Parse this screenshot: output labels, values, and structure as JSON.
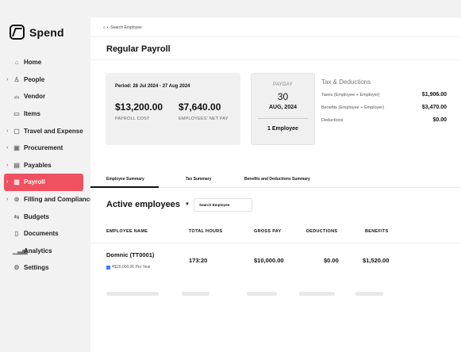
{
  "app": {
    "name": "Spend"
  },
  "sidebar": {
    "items": [
      {
        "label": "Home",
        "icon": "home-icon",
        "glyph": "⌂",
        "chevron": false,
        "active": false
      },
      {
        "label": "People",
        "icon": "people-icon",
        "glyph": "♙",
        "chevron": true,
        "active": false
      },
      {
        "label": "Vendor",
        "icon": "vendor-icon",
        "glyph": "⌓",
        "chevron": false,
        "active": false
      },
      {
        "label": "Items",
        "icon": "items-icon",
        "glyph": "▭",
        "chevron": false,
        "active": false
      },
      {
        "label": "Travel and Expense",
        "icon": "travel-icon",
        "glyph": "▢",
        "chevron": true,
        "active": false
      },
      {
        "label": "Procurement",
        "icon": "procurement-icon",
        "glyph": "▣",
        "chevron": true,
        "active": false
      },
      {
        "label": "Payables",
        "icon": "payables-icon",
        "glyph": "▤",
        "chevron": true,
        "active": false
      },
      {
        "label": "Payroll",
        "icon": "payroll-icon",
        "glyph": "▥",
        "chevron": true,
        "active": true
      },
      {
        "label": "Filling and Compliance",
        "icon": "compliance-icon",
        "glyph": "⊚",
        "chevron": true,
        "active": false
      },
      {
        "label": "Budgets",
        "icon": "budgets-icon",
        "glyph": "⇆",
        "chevron": false,
        "active": false
      },
      {
        "label": "Documents",
        "icon": "documents-icon",
        "glyph": "▯",
        "chevron": false,
        "active": false
      },
      {
        "label": "Analytics",
        "icon": "analytics-icon",
        "glyph": "▁▃▅",
        "chevron": false,
        "active": false
      },
      {
        "label": "Settings",
        "icon": "settings-icon",
        "glyph": "⚙",
        "chevron": false,
        "active": false
      }
    ]
  },
  "search": {
    "placeholder": "Search Employee"
  },
  "page": {
    "title": "Regular Payroll"
  },
  "summary": {
    "period": "Period: 28 Jul 2024 - 27 Aug 2024",
    "payroll_cost": "$13,200.00",
    "payroll_cost_label": "PAYROLL COST",
    "net_pay": "$7,640.00",
    "net_pay_label": "EMPLOYEES' NET PAY"
  },
  "payday": {
    "label": "PAYDAY",
    "day": "30",
    "month_year": "AUG, 2024",
    "employees": "1 Employee"
  },
  "taxes": {
    "title": "Tax & Deductions",
    "rows": [
      {
        "label": "Taxes (Employee + Employer)",
        "value": "$1,906.00"
      },
      {
        "label": "Benefits (Employee + Employer)",
        "value": "$3,470.00"
      },
      {
        "label": "Deductions",
        "value": "$0.00"
      }
    ]
  },
  "tabs": [
    "Employee Summary",
    "Tax Summary",
    "Benefits and Deductions Summary"
  ],
  "employees_section": {
    "title": "Active employees",
    "search_placeholder": "Search Employee"
  },
  "table": {
    "columns": [
      "EMPLOYEE NAME",
      "TOTAL HOURS",
      "GROSS PAY",
      "DEDUCTIONS",
      "BENEFITS"
    ],
    "rows": [
      {
        "name": "Domnic (TT0001)",
        "salary": "₹$20,000.00 Per Year",
        "hours": "173:20",
        "gross": "$10,000.00",
        "deductions": "$0.00",
        "benefits": "$1,520.00"
      }
    ]
  },
  "colors": {
    "accent": "#ef5160",
    "card_bg": "#f0f0f0",
    "sidebar_bg": "#f2f2f2"
  }
}
